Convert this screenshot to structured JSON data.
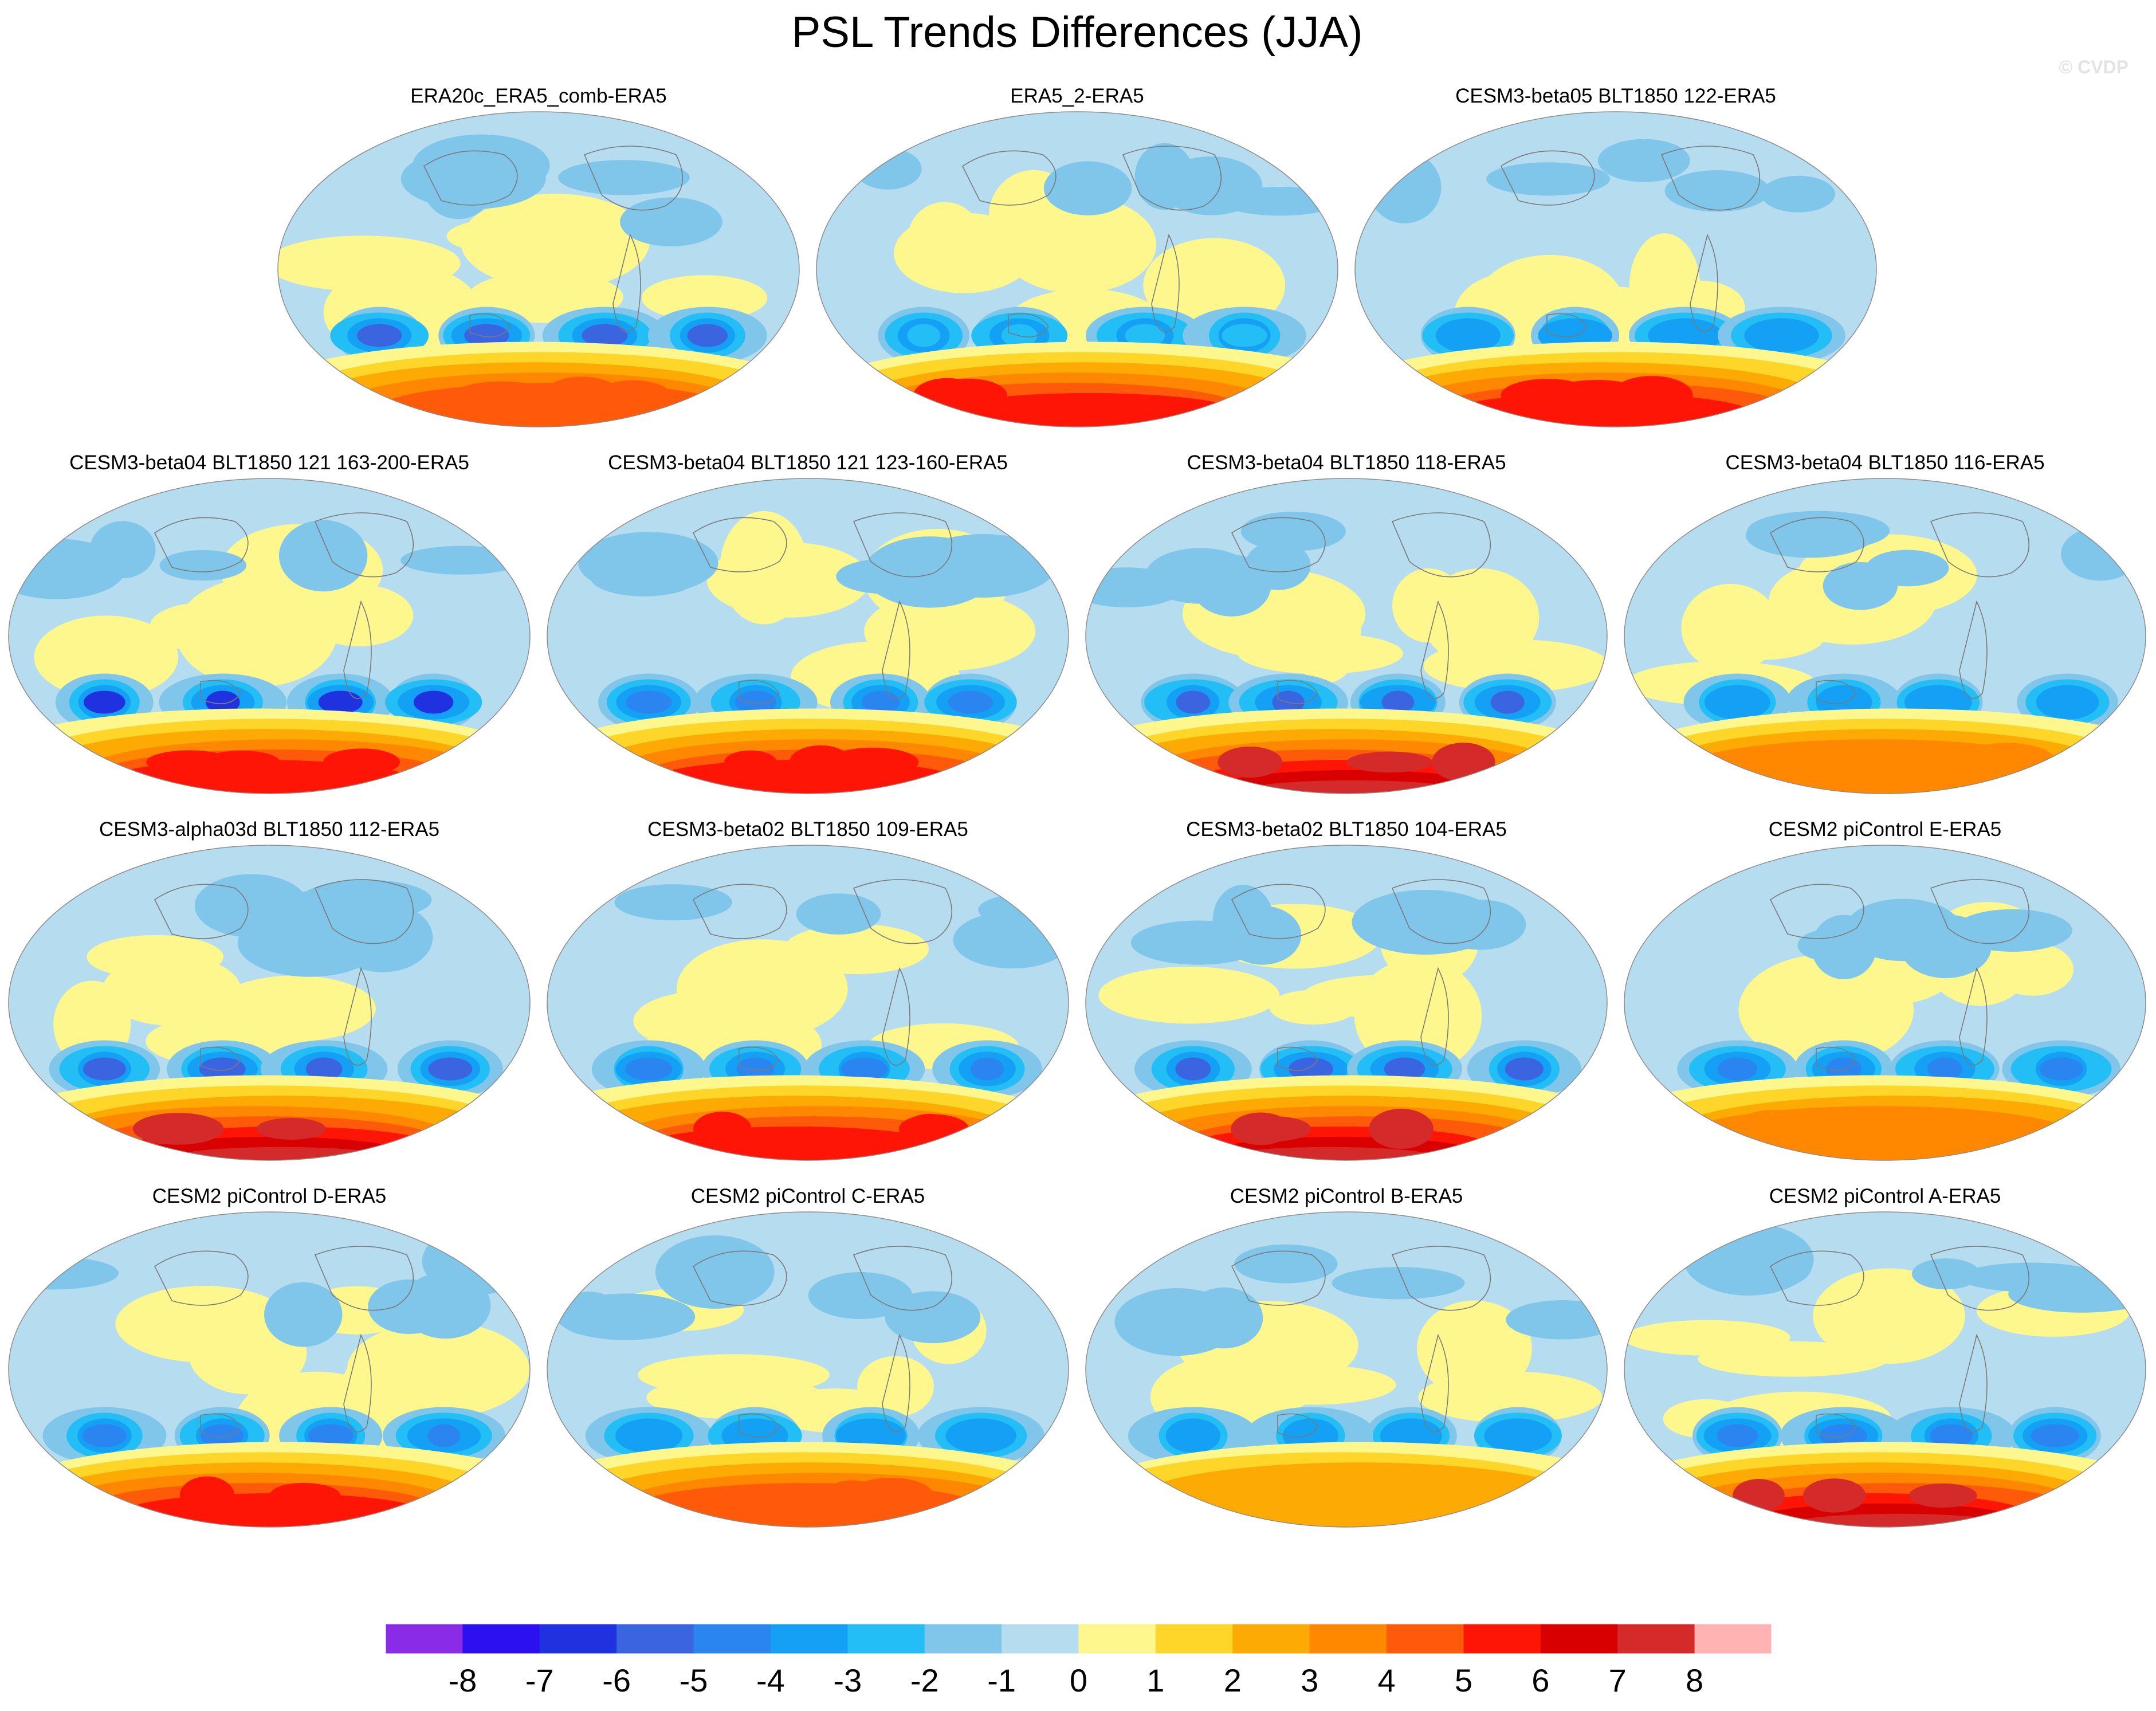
{
  "title": "PSL Trends Differences (JJA)",
  "watermark": "© CVDP",
  "panels": [
    {
      "title": "ERA20c_ERA5_comb-ERA5",
      "cmax": 5,
      "cmin": -6,
      "seed": 1
    },
    {
      "title": "ERA5_2-ERA5",
      "cmax": 6,
      "cmin": -3,
      "seed": 2
    },
    {
      "title": "CESM3-beta05 BLT1850 122-ERA5",
      "cmax": 6,
      "cmin": -4,
      "seed": 3
    },
    {
      "title": "CESM3-beta04 BLT1850 121 163-200-ERA5",
      "cmax": 6,
      "cmin": -7,
      "seed": 4
    },
    {
      "title": "CESM3-beta04 BLT1850 121 123-160-ERA5",
      "cmax": 6,
      "cmin": -5,
      "seed": 5
    },
    {
      "title": "CESM3-beta04 BLT1850 118-ERA5",
      "cmax": 8,
      "cmin": -6,
      "seed": 6
    },
    {
      "title": "CESM3-beta04 BLT1850 116-ERA5",
      "cmax": 4,
      "cmin": -4,
      "seed": 7
    },
    {
      "title": "CESM3-alpha03d BLT1850 112-ERA5",
      "cmax": 8,
      "cmin": -6,
      "seed": 8
    },
    {
      "title": "CESM3-beta02 BLT1850 109-ERA5",
      "cmax": 6,
      "cmin": -5,
      "seed": 9
    },
    {
      "title": "CESM3-beta02 BLT1850 104-ERA5",
      "cmax": 8,
      "cmin": -6,
      "seed": 10
    },
    {
      "title": "CESM2 piControl E-ERA5",
      "cmax": 4,
      "cmin": -5,
      "seed": 11
    },
    {
      "title": "CESM2 piControl D-ERA5",
      "cmax": 6,
      "cmin": -5,
      "seed": 12
    },
    {
      "title": "CESM2 piControl C-ERA5",
      "cmax": 5,
      "cmin": -4,
      "seed": 13
    },
    {
      "title": "CESM2 piControl B-ERA5",
      "cmax": 3,
      "cmin": -4,
      "seed": 14
    },
    {
      "title": "CESM2 piControl A-ERA5",
      "cmax": 8,
      "cmin": -5,
      "seed": 15
    }
  ],
  "colorbar": {
    "levels": [
      -8,
      -7,
      -6,
      -5,
      -4,
      -3,
      -2,
      -1,
      0,
      1,
      2,
      3,
      4,
      5,
      6,
      7,
      8
    ],
    "labels": [
      "-8",
      "-7",
      "-6",
      "-5",
      "-4",
      "-3",
      "-2",
      "-1",
      "0",
      "1",
      "2",
      "3",
      "4",
      "5",
      "6",
      "7",
      "8"
    ],
    "colors": [
      "#8a2be8",
      "#2d10f0",
      "#2032e0",
      "#3b64e0",
      "#2a85f0",
      "#14a0f5",
      "#22bef5",
      "#80c6ea",
      "#b6dcf0",
      "#fdf78e",
      "#fdd629",
      "#fdaa05",
      "#ff8800",
      "#ff5a0a",
      "#ff1505",
      "#d80000",
      "#d42a2a",
      "#ffb3b3"
    ]
  }
}
